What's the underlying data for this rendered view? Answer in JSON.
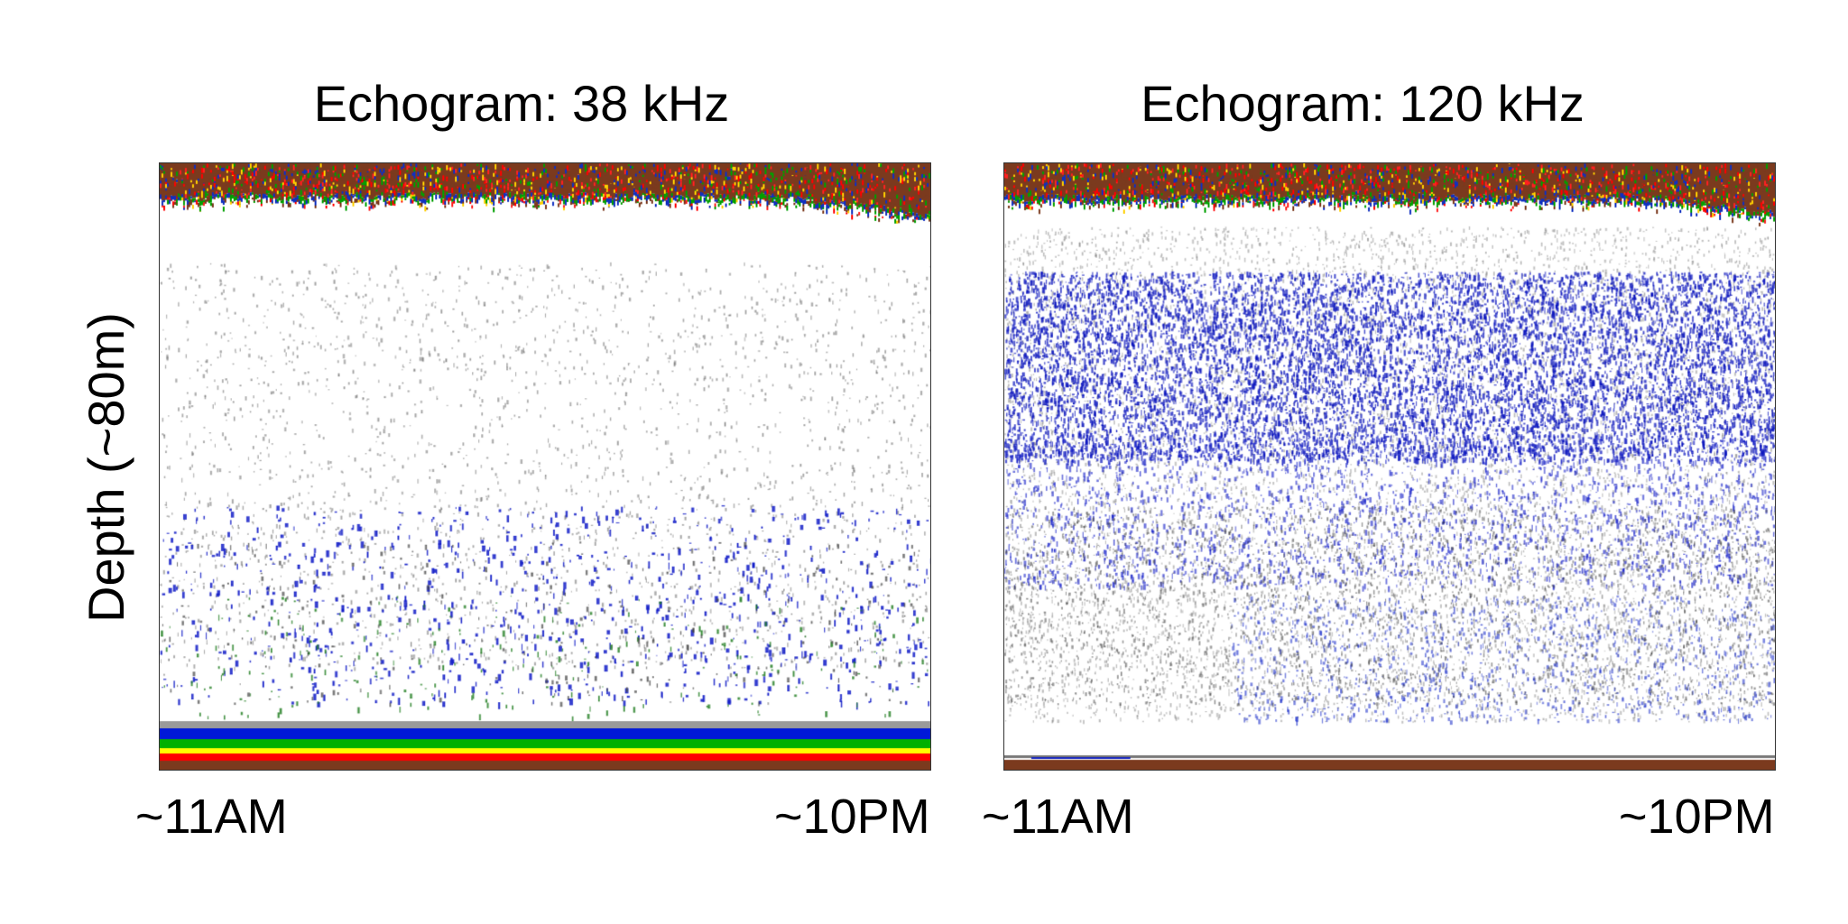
{
  "chart_data": [
    {
      "type": "heatmap",
      "title": "Echogram: 38 kHz",
      "ylabel": "Depth (~80m)",
      "x_tick_labels": [
        "~11AM",
        "~10PM"
      ],
      "colors": [
        "#7b3a1e",
        "#ff0000",
        "#ffff00",
        "#00a000",
        "#0000cc",
        "#808080"
      ],
      "features": {
        "surface_band": "brown/red/yellow/green noise at top",
        "bottom_band": "gray, blue, green, yellow, red, brown stripes",
        "scatter": "sparse gray points in upper half, blue/green patches in lower half"
      }
    },
    {
      "type": "heatmap",
      "title": "Echogram: 120 kHz",
      "ylabel": "Depth (~80m)",
      "x_tick_labels": [
        "~11AM",
        "~10PM"
      ],
      "colors": [
        "#7b3a1e",
        "#ff0000",
        "#ffff00",
        "#00a000",
        "#0000cc",
        "#808080"
      ],
      "features": {
        "surface_band": "brown/red/yellow/green noise at top",
        "bottom_band": "thin gray/blue line and brown strip",
        "scatter": "dense blue layer in upper-middle, gray scatter below"
      }
    }
  ]
}
